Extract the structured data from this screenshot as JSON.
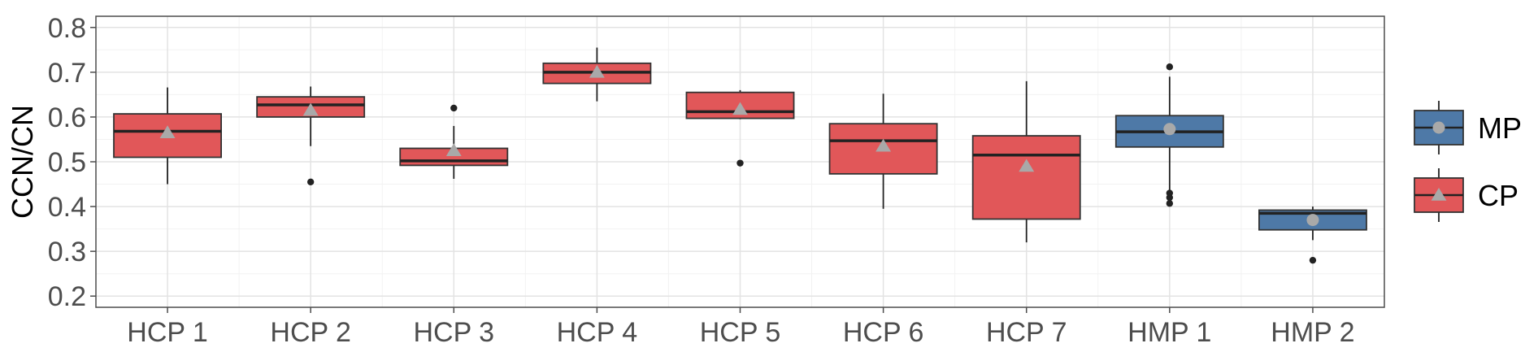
{
  "chart_data": {
    "type": "boxplot",
    "ylabel": "CCN/CN",
    "xlabel": "",
    "ylim": [
      0.175,
      0.825
    ],
    "yticks": [
      "0.2",
      "0.3",
      "0.4",
      "0.5",
      "0.6",
      "0.7",
      "0.8"
    ],
    "grid": true,
    "legend_position": "right",
    "colors": {
      "CP": "#e15759",
      "MP": "#4e79a7",
      "mean_marker": "#a9a9a9",
      "outlier": "#222222"
    },
    "legend": [
      {
        "label": "MP",
        "marker": "circle",
        "color": "#4e79a7"
      },
      {
        "label": "CP",
        "marker": "triangle",
        "color": "#e15759"
      }
    ],
    "categories": [
      "HCP 1",
      "HCP 2",
      "HCP 3",
      "HCP 4",
      "HCP 5",
      "HCP 6",
      "HCP 7",
      "HMP 1",
      "HMP 2"
    ],
    "boxes": [
      {
        "label": "HCP 1",
        "group": "CP",
        "whisker_low": 0.45,
        "q1": 0.51,
        "median": 0.568,
        "q3": 0.607,
        "whisker_high": 0.666,
        "mean": 0.565,
        "outliers": []
      },
      {
        "label": "HCP 2",
        "group": "CP",
        "whisker_low": 0.535,
        "q1": 0.6,
        "median": 0.627,
        "q3": 0.645,
        "whisker_high": 0.668,
        "mean": 0.615,
        "outliers": [
          0.455
        ]
      },
      {
        "label": "HCP 3",
        "group": "CP",
        "whisker_low": 0.462,
        "q1": 0.492,
        "median": 0.502,
        "q3": 0.53,
        "whisker_high": 0.58,
        "mean": 0.525,
        "outliers": [
          0.62
        ]
      },
      {
        "label": "HCP 4",
        "group": "CP",
        "whisker_low": 0.635,
        "q1": 0.675,
        "median": 0.7,
        "q3": 0.72,
        "whisker_high": 0.755,
        "mean": 0.7,
        "outliers": []
      },
      {
        "label": "HCP 5",
        "group": "CP",
        "whisker_low": 0.595,
        "q1": 0.597,
        "median": 0.612,
        "q3": 0.655,
        "whisker_high": 0.66,
        "mean": 0.617,
        "outliers": [
          0.497
        ]
      },
      {
        "label": "HCP 6",
        "group": "CP",
        "whisker_low": 0.395,
        "q1": 0.473,
        "median": 0.547,
        "q3": 0.585,
        "whisker_high": 0.652,
        "mean": 0.535,
        "outliers": []
      },
      {
        "label": "HCP 7",
        "group": "CP",
        "whisker_low": 0.32,
        "q1": 0.372,
        "median": 0.515,
        "q3": 0.558,
        "whisker_high": 0.68,
        "mean": 0.49,
        "outliers": []
      },
      {
        "label": "HMP 1",
        "group": "MP",
        "whisker_low": 0.435,
        "q1": 0.533,
        "median": 0.567,
        "q3": 0.603,
        "whisker_high": 0.69,
        "mean": 0.573,
        "outliers": [
          0.712,
          0.43,
          0.42,
          0.407
        ]
      },
      {
        "label": "HMP 2",
        "group": "MP",
        "whisker_low": 0.325,
        "q1": 0.348,
        "median": 0.385,
        "q3": 0.392,
        "whisker_high": 0.4,
        "mean": 0.37,
        "outliers": [
          0.28
        ]
      }
    ]
  }
}
